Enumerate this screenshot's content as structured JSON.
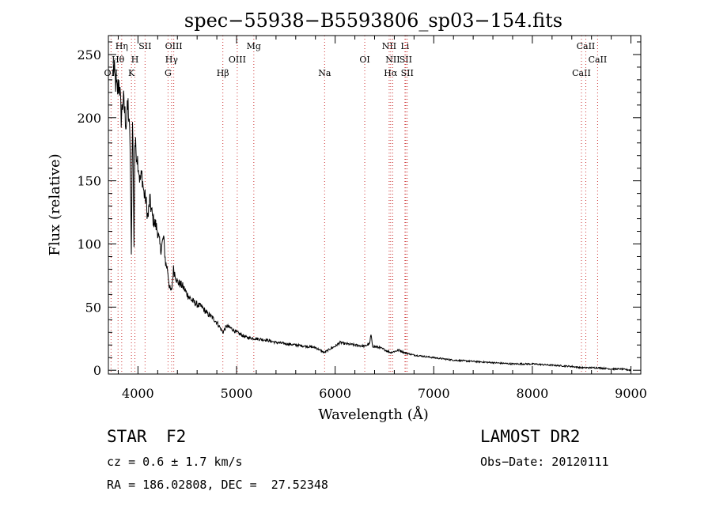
{
  "chart_data": {
    "type": "line",
    "title": "spec−55938−B5593806_sp03−154.fits",
    "xlabel": "Wavelength (Å)",
    "ylabel": "Flux (relative)",
    "xlim": [
      3700,
      9100
    ],
    "ylim": [
      -3,
      265
    ],
    "xticks": [
      "4000",
      "5000",
      "6000",
      "7000",
      "8000",
      "9000"
    ],
    "yticks": [
      "0",
      "50",
      "100",
      "150",
      "200",
      "250"
    ],
    "grid": false,
    "series": [
      {
        "x": [
          3750,
          3790,
          3810,
          3830,
          3850,
          3880,
          3900,
          3920,
          3933,
          3945,
          3960,
          3968,
          3980,
          4000,
          4020,
          4040,
          4060,
          4080,
          4101,
          4120,
          4150,
          4180,
          4200,
          4230,
          4260,
          4280,
          4300,
          4320,
          4340,
          4360,
          4380,
          4400,
          4450,
          4500,
          4550,
          4600,
          4650,
          4700,
          4750,
          4800,
          4861,
          4900,
          4950,
          5000,
          5050,
          5100,
          5200,
          5300,
          5400,
          5500,
          5600,
          5700,
          5800,
          5890,
          5950,
          6000,
          6050,
          6100,
          6200,
          6300,
          6350,
          6363,
          6380,
          6450,
          6563,
          6650,
          6700,
          6800,
          6900,
          7000,
          7200,
          7400,
          7600,
          7800,
          8000,
          8200,
          8400,
          8498,
          8542,
          8600,
          8662,
          8800,
          8900,
          9000
        ],
        "y": [
          240,
          220,
          230,
          200,
          215,
          195,
          210,
          180,
          90,
          205,
          100,
          180,
          175,
          165,
          150,
          155,
          140,
          135,
          120,
          135,
          120,
          115,
          110,
          95,
          105,
          85,
          80,
          65,
          62,
          80,
          75,
          70,
          67,
          60,
          55,
          52,
          50,
          45,
          42,
          38,
          30,
          35,
          33,
          30,
          28,
          26,
          25,
          24,
          22,
          21,
          20,
          19,
          18,
          14,
          17,
          19,
          22,
          21,
          20,
          19,
          21,
          28,
          19,
          18,
          14,
          16,
          14,
          12,
          11,
          10,
          8,
          7,
          6,
          5,
          5,
          4,
          3,
          2,
          2,
          2,
          2,
          1,
          1,
          0
        ]
      }
    ],
    "lines": [
      {
        "label": "OII",
        "x": 3727,
        "row": 3
      },
      {
        "label": "Hθ",
        "x": 3798,
        "row": 2
      },
      {
        "label": "Hη",
        "x": 3835,
        "row": 1
      },
      {
        "label": "K",
        "x": 3934,
        "row": 3
      },
      {
        "label": "H",
        "x": 3969,
        "row": 2
      },
      {
        "label": "SII",
        "x": 4072,
        "row": 1
      },
      {
        "label": "G",
        "x": 4305,
        "row": 3
      },
      {
        "label": "Hγ",
        "x": 4341,
        "row": 2
      },
      {
        "label": "OIII",
        "x": 4363,
        "row": 1
      },
      {
        "label": "Hβ",
        "x": 4861,
        "row": 3
      },
      {
        "label": "OIII",
        "x": 5007,
        "row": 2
      },
      {
        "label": "Mg",
        "x": 5175,
        "row": 1
      },
      {
        "label": "Na",
        "x": 5893,
        "row": 3
      },
      {
        "label": "OI",
        "x": 6300,
        "row": 2
      },
      {
        "label": "NII",
        "x": 6548,
        "row": 1
      },
      {
        "label": "Hα",
        "x": 6563,
        "row": 3
      },
      {
        "label": "NII",
        "x": 6584,
        "row": 2
      },
      {
        "label": "Li",
        "x": 6708,
        "row": 1
      },
      {
        "label": "SII",
        "x": 6716,
        "row": 2
      },
      {
        "label": "SII",
        "x": 6731,
        "row": 3
      },
      {
        "label": "CaII",
        "x": 8498,
        "row": 3
      },
      {
        "label": "CaII",
        "x": 8542,
        "row": 1
      },
      {
        "label": "CaII",
        "x": 8662,
        "row": 2
      }
    ]
  },
  "info": {
    "class": "STAR",
    "subclass": "F2",
    "survey": "LAMOST DR2",
    "cz": "cz = 0.6 ± 1.7 km/s",
    "obs_date": "Obs−Date: 20120111",
    "radec": "RA = 186.02808, DEC =  27.52348"
  }
}
